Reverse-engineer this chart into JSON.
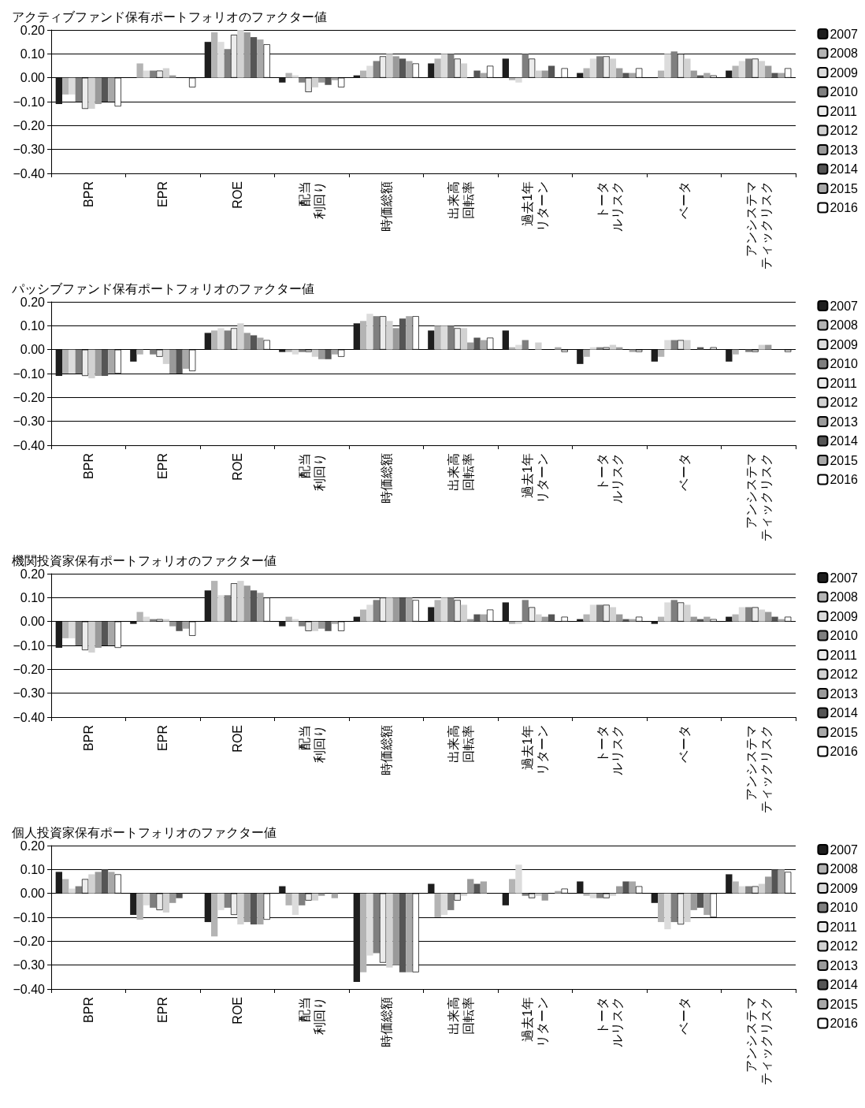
{
  "chart_data": [
    {
      "type": "bar",
      "title": "アクティブファンド保有ポートフォリオのファクター値",
      "categories": [
        "BPR",
        "EPR",
        "ROE",
        "配当利回り",
        "時価総額",
        "出来高回転率",
        "過去1年リターン",
        "トータルリスク",
        "ベータ",
        "アンシステマティックリスク"
      ],
      "ylim": [
        -0.4,
        0.2
      ],
      "yticks": [
        {
          "value": -0.4,
          "label": "−0.40"
        },
        {
          "value": -0.3,
          "label": "−0.30"
        },
        {
          "value": -0.2,
          "label": "−0.20"
        },
        {
          "value": -0.1,
          "label": "−0.10"
        },
        {
          "value": 0,
          "label": "0.00"
        },
        {
          "value": 0.1,
          "label": "0.10"
        },
        {
          "value": 0.2,
          "label": "0.20"
        }
      ],
      "grid": "y",
      "legend": "right",
      "series": [
        {
          "name": "2007",
          "color": "#1e1e1e",
          "values": [
            -0.11,
            0.0,
            0.15,
            -0.02,
            0.01,
            0.06,
            0.08,
            0.02,
            0.0,
            0.03
          ]
        },
        {
          "name": "2008",
          "color": "#b4b4b4",
          "values": [
            -0.07,
            0.06,
            0.19,
            0.02,
            0.03,
            0.08,
            -0.01,
            0.04,
            0.03,
            0.05
          ]
        },
        {
          "name": "2009",
          "color": "#dcdcdc",
          "values": [
            -0.07,
            0.03,
            0.15,
            0.01,
            0.05,
            0.1,
            -0.02,
            0.08,
            0.1,
            0.07
          ]
        },
        {
          "name": "2010",
          "color": "#7f7f7f",
          "values": [
            -0.1,
            0.03,
            0.12,
            -0.02,
            0.07,
            0.1,
            0.1,
            0.09,
            0.11,
            0.08
          ]
        },
        {
          "name": "2011",
          "color": "#ececec",
          "values": [
            -0.13,
            0.03,
            0.18,
            -0.06,
            0.09,
            0.08,
            0.08,
            0.09,
            0.1,
            0.08
          ]
        },
        {
          "name": "2012",
          "color": "#d2d2d2",
          "values": [
            -0.13,
            0.04,
            0.2,
            -0.04,
            0.1,
            0.06,
            0.03,
            0.08,
            0.08,
            0.07
          ]
        },
        {
          "name": "2013",
          "color": "#9a9a9a",
          "values": [
            -0.11,
            0.01,
            0.19,
            -0.02,
            0.09,
            0.0,
            0.03,
            0.04,
            0.03,
            0.05
          ]
        },
        {
          "name": "2014",
          "color": "#555555",
          "values": [
            -0.1,
            0.0,
            0.17,
            -0.03,
            0.08,
            0.03,
            0.05,
            0.02,
            0.01,
            0.02
          ]
        },
        {
          "name": "2015",
          "color": "#a8a8a8",
          "values": [
            -0.1,
            0.0,
            0.16,
            -0.01,
            0.07,
            0.02,
            0.0,
            0.02,
            0.02,
            0.02
          ]
        },
        {
          "name": "2016",
          "color": "#ffffff",
          "values": [
            -0.12,
            -0.04,
            0.14,
            -0.04,
            0.06,
            0.05,
            0.04,
            0.04,
            0.01,
            0.04
          ]
        }
      ]
    },
    {
      "type": "bar",
      "title": "パッシブファンド保有ポートフォリオのファクター値",
      "categories": [
        "BPR",
        "EPR",
        "ROE",
        "配当利回り",
        "時価総額",
        "出来高回転率",
        "過去1年リターン",
        "トータルリスク",
        "ベータ",
        "アンシステマティックリスク"
      ],
      "ylim": [
        -0.4,
        0.2
      ],
      "yticks": [
        {
          "value": -0.4,
          "label": "−0.40"
        },
        {
          "value": -0.3,
          "label": "−0.30"
        },
        {
          "value": -0.2,
          "label": "−0.20"
        },
        {
          "value": -0.1,
          "label": "−0.10"
        },
        {
          "value": 0,
          "label": "0.00"
        },
        {
          "value": 0.1,
          "label": "0.10"
        },
        {
          "value": 0.2,
          "label": "0.20"
        }
      ],
      "grid": "y",
      "legend": "right",
      "series": [
        {
          "name": "2007",
          "color": "#1e1e1e",
          "values": [
            -0.11,
            -0.05,
            0.07,
            -0.01,
            0.11,
            0.08,
            0.08,
            -0.06,
            -0.05,
            -0.05
          ]
        },
        {
          "name": "2008",
          "color": "#b4b4b4",
          "values": [
            -0.1,
            -0.02,
            0.08,
            -0.01,
            0.12,
            0.1,
            0.01,
            -0.03,
            -0.03,
            -0.02
          ]
        },
        {
          "name": "2009",
          "color": "#dcdcdc",
          "values": [
            -0.1,
            0.0,
            0.09,
            -0.02,
            0.15,
            0.1,
            0.02,
            0.01,
            0.04,
            0.0
          ]
        },
        {
          "name": "2010",
          "color": "#7f7f7f",
          "values": [
            -0.1,
            -0.02,
            0.08,
            -0.01,
            0.14,
            0.1,
            0.04,
            0.01,
            0.04,
            -0.01
          ]
        },
        {
          "name": "2011",
          "color": "#ececec",
          "values": [
            -0.11,
            -0.03,
            0.09,
            -0.01,
            0.14,
            0.09,
            0.0,
            0.01,
            0.04,
            -0.01
          ]
        },
        {
          "name": "2012",
          "color": "#d2d2d2",
          "values": [
            -0.12,
            -0.06,
            0.11,
            -0.03,
            0.12,
            0.09,
            0.03,
            0.02,
            0.04,
            0.02
          ]
        },
        {
          "name": "2013",
          "color": "#9a9a9a",
          "values": [
            -0.11,
            -0.1,
            0.07,
            -0.04,
            0.09,
            0.03,
            0.0,
            0.01,
            0.0,
            0.02
          ]
        },
        {
          "name": "2014",
          "color": "#555555",
          "values": [
            -0.11,
            -0.1,
            0.06,
            -0.04,
            0.13,
            0.05,
            0.0,
            0.0,
            0.01,
            0.0
          ]
        },
        {
          "name": "2015",
          "color": "#a8a8a8",
          "values": [
            -0.1,
            -0.08,
            0.05,
            -0.02,
            0.14,
            0.04,
            0.01,
            -0.01,
            0.0,
            0.0
          ]
        },
        {
          "name": "2016",
          "color": "#ffffff",
          "values": [
            -0.1,
            -0.09,
            0.04,
            -0.03,
            0.14,
            0.05,
            -0.01,
            -0.01,
            0.01,
            -0.01
          ]
        }
      ]
    },
    {
      "type": "bar",
      "title": "機関投資家保有ポートフォリオのファクター値",
      "categories": [
        "BPR",
        "EPR",
        "ROE",
        "配当利回り",
        "時価総額",
        "出来高回転率",
        "過去1年リターン",
        "トータルリスク",
        "ベータ",
        "アンシステマティックリスク"
      ],
      "ylim": [
        -0.4,
        0.2
      ],
      "yticks": [
        {
          "value": -0.4,
          "label": "−0.40"
        },
        {
          "value": -0.3,
          "label": "−0.30"
        },
        {
          "value": -0.2,
          "label": "−0.20"
        },
        {
          "value": -0.1,
          "label": "−0.10"
        },
        {
          "value": 0,
          "label": "0.00"
        },
        {
          "value": 0.1,
          "label": "0.10"
        },
        {
          "value": 0.2,
          "label": "0.20"
        }
      ],
      "grid": "y",
      "legend": "right",
      "series": [
        {
          "name": "2007",
          "color": "#1e1e1e",
          "values": [
            -0.11,
            -0.01,
            0.13,
            -0.02,
            0.02,
            0.06,
            0.08,
            0.01,
            -0.01,
            0.02
          ]
        },
        {
          "name": "2008",
          "color": "#b4b4b4",
          "values": [
            -0.07,
            0.04,
            0.17,
            0.02,
            0.05,
            0.09,
            -0.01,
            0.03,
            0.02,
            0.03
          ]
        },
        {
          "name": "2009",
          "color": "#dcdcdc",
          "values": [
            -0.07,
            0.02,
            0.11,
            0.01,
            0.07,
            0.1,
            -0.01,
            0.07,
            0.08,
            0.06
          ]
        },
        {
          "name": "2010",
          "color": "#7f7f7f",
          "values": [
            -0.1,
            0.01,
            0.11,
            -0.02,
            0.09,
            0.1,
            0.09,
            0.07,
            0.09,
            0.06
          ]
        },
        {
          "name": "2011",
          "color": "#ececec",
          "values": [
            -0.12,
            0.01,
            0.16,
            -0.04,
            0.1,
            0.09,
            0.06,
            0.07,
            0.08,
            0.06
          ]
        },
        {
          "name": "2012",
          "color": "#d2d2d2",
          "values": [
            -0.13,
            0.01,
            0.17,
            -0.04,
            0.1,
            0.07,
            0.03,
            0.06,
            0.07,
            0.05
          ]
        },
        {
          "name": "2013",
          "color": "#9a9a9a",
          "values": [
            -0.11,
            -0.02,
            0.15,
            -0.03,
            0.1,
            0.01,
            0.02,
            0.03,
            0.02,
            0.04
          ]
        },
        {
          "name": "2014",
          "color": "#555555",
          "values": [
            -0.1,
            -0.04,
            0.13,
            -0.04,
            0.1,
            0.03,
            0.03,
            0.01,
            0.01,
            0.02
          ]
        },
        {
          "name": "2015",
          "color": "#a8a8a8",
          "values": [
            -0.1,
            -0.03,
            0.12,
            -0.01,
            0.1,
            0.03,
            0.0,
            0.01,
            0.02,
            0.01
          ]
        },
        {
          "name": "2016",
          "color": "#ffffff",
          "values": [
            -0.11,
            -0.06,
            0.1,
            -0.04,
            0.09,
            0.05,
            0.02,
            0.02,
            0.01,
            0.02
          ]
        }
      ]
    },
    {
      "type": "bar",
      "title": "個人投資家保有ポートフォリオのファクター値",
      "categories": [
        "BPR",
        "EPR",
        "ROE",
        "配当利回り",
        "時価総額",
        "出来高回転率",
        "過去1年リターン",
        "トータルリスク",
        "ベータ",
        "アンシステマティックリスク"
      ],
      "ylim": [
        -0.4,
        0.2
      ],
      "yticks": [
        {
          "value": -0.4,
          "label": "−0.40"
        },
        {
          "value": -0.3,
          "label": "−0.30"
        },
        {
          "value": -0.2,
          "label": "−0.20"
        },
        {
          "value": -0.1,
          "label": "−0.10"
        },
        {
          "value": 0,
          "label": "0.00"
        },
        {
          "value": 0.1,
          "label": "0.10"
        },
        {
          "value": 0.2,
          "label": "0.20"
        }
      ],
      "grid": "y",
      "legend": "right",
      "series": [
        {
          "name": "2007",
          "color": "#1e1e1e",
          "values": [
            0.09,
            -0.09,
            -0.12,
            0.03,
            -0.37,
            0.04,
            -0.05,
            0.05,
            -0.04,
            0.08
          ]
        },
        {
          "name": "2008",
          "color": "#b4b4b4",
          "values": [
            0.06,
            -0.11,
            -0.18,
            -0.05,
            -0.33,
            -0.1,
            0.06,
            -0.01,
            -0.12,
            0.05
          ]
        },
        {
          "name": "2009",
          "color": "#dcdcdc",
          "values": [
            0.02,
            -0.05,
            -0.07,
            -0.09,
            -0.26,
            -0.09,
            0.12,
            -0.02,
            -0.15,
            0.03
          ]
        },
        {
          "name": "2010",
          "color": "#7f7f7f",
          "values": [
            0.03,
            -0.06,
            -0.06,
            -0.05,
            -0.25,
            -0.07,
            -0.01,
            -0.02,
            -0.12,
            0.03
          ]
        },
        {
          "name": "2011",
          "color": "#ececec",
          "values": [
            0.06,
            -0.07,
            -0.09,
            -0.03,
            -0.29,
            -0.03,
            -0.02,
            -0.02,
            -0.13,
            0.03
          ]
        },
        {
          "name": "2012",
          "color": "#d2d2d2",
          "values": [
            0.08,
            -0.08,
            -0.13,
            -0.03,
            -0.31,
            -0.01,
            -0.01,
            -0.01,
            -0.12,
            0.04
          ]
        },
        {
          "name": "2013",
          "color": "#9a9a9a",
          "values": [
            0.09,
            -0.04,
            -0.12,
            -0.01,
            -0.3,
            0.06,
            -0.03,
            0.03,
            -0.07,
            0.07
          ]
        },
        {
          "name": "2014",
          "color": "#555555",
          "values": [
            0.1,
            -0.02,
            -0.13,
            0.0,
            -0.33,
            0.04,
            0.0,
            0.05,
            -0.06,
            0.1
          ]
        },
        {
          "name": "2015",
          "color": "#a8a8a8",
          "values": [
            0.09,
            0.0,
            -0.13,
            -0.02,
            -0.33,
            0.05,
            0.01,
            0.05,
            -0.09,
            0.1
          ]
        },
        {
          "name": "2016",
          "color": "#ffffff",
          "values": [
            0.08,
            0.0,
            -0.11,
            0.0,
            -0.33,
            0.0,
            0.02,
            0.03,
            -0.1,
            0.09
          ]
        }
      ]
    }
  ]
}
